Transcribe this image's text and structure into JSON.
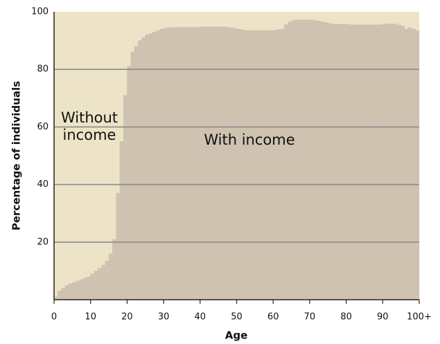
{
  "chart_data": {
    "type": "histogram",
    "x_label": "Age",
    "y_label": "Percentage of individuals",
    "annotations": [
      "Without income",
      "With income"
    ],
    "background_color": "#ede4c7",
    "bins": [
      0,
      1,
      2,
      3,
      4,
      5,
      6,
      7,
      8,
      9,
      10,
      11,
      12,
      13,
      14,
      15,
      16,
      17,
      18,
      19,
      20,
      21,
      22,
      23,
      24,
      25,
      26,
      27,
      28,
      29,
      30,
      31,
      32,
      33,
      34,
      35,
      36,
      37,
      38,
      39,
      40,
      41,
      42,
      43,
      44,
      45,
      46,
      47,
      48,
      49,
      50,
      51,
      52,
      53,
      54,
      55,
      56,
      57,
      58,
      59,
      60,
      61,
      62,
      63,
      64,
      65,
      66,
      67,
      68,
      69,
      70,
      71,
      72,
      73,
      74,
      75,
      76,
      77,
      78,
      79,
      80,
      81,
      82,
      83,
      84,
      85,
      86,
      87,
      88,
      89,
      90,
      91,
      92,
      93,
      94,
      95,
      96,
      97,
      98,
      99,
      100
    ],
    "series": [
      {
        "name": "With income",
        "color": "#cfc2b0",
        "values": [
          1,
          3,
          4,
          5,
          5.5,
          6,
          6.5,
          7,
          7.5,
          8,
          9,
          10,
          11,
          12,
          13.5,
          16,
          21,
          37,
          55,
          71,
          81,
          86,
          88,
          90,
          91,
          92,
          92.5,
          93,
          93.5,
          94,
          94.3,
          94.5,
          94.6,
          94.6,
          94.6,
          94.6,
          94.6,
          94.6,
          94.6,
          94.6,
          94.8,
          94.8,
          94.8,
          94.8,
          94.8,
          94.8,
          94.8,
          94.6,
          94.5,
          94.3,
          94,
          93.8,
          93.6,
          93.5,
          93.5,
          93.5,
          93.5,
          93.5,
          93.5,
          93.5,
          93.6,
          93.8,
          94,
          95.5,
          96.5,
          97,
          97.2,
          97.2,
          97.2,
          97.2,
          97.2,
          97,
          96.8,
          96.5,
          96.3,
          96,
          95.7,
          95.7,
          95.7,
          95.7,
          95.7,
          95.5,
          95.5,
          95.5,
          95.5,
          95.5,
          95.5,
          95.5,
          95.5,
          95.5,
          95.8,
          95.8,
          95.8,
          95.8,
          95.5,
          95,
          94,
          94.5,
          94,
          93.5
        ]
      }
    ],
    "xlim": [
      0,
      100
    ],
    "xticks": [
      0,
      10,
      20,
      30,
      40,
      50,
      60,
      70,
      80,
      90,
      {
        "value": 100,
        "label": "100+"
      }
    ],
    "ylim": [
      0,
      100
    ],
    "yticks": [
      20,
      40,
      60,
      80,
      100
    ],
    "grid": true
  }
}
